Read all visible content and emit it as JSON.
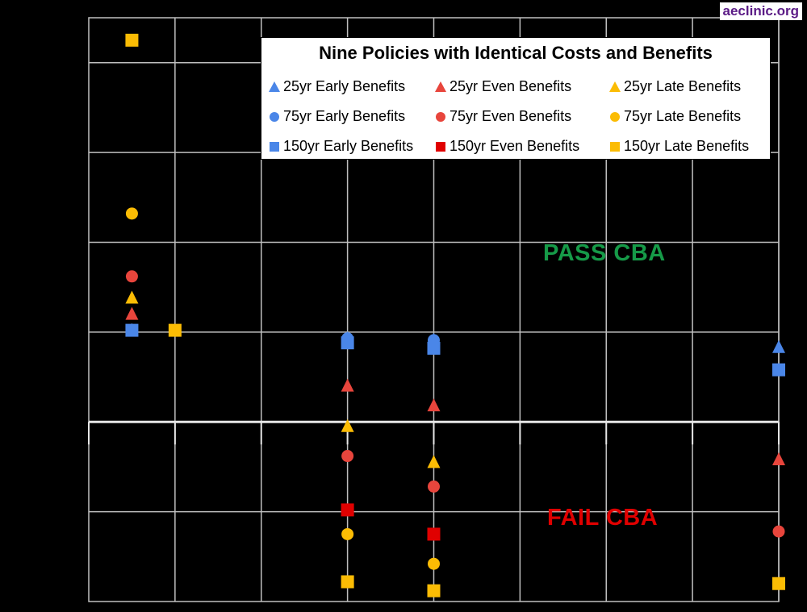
{
  "brand": "aeclinic.org",
  "colors": {
    "early": "#4a86e8",
    "even": "#e8453c",
    "late": "#fbbc04",
    "pass": "#169a48",
    "fail": "#e00000"
  },
  "chart_data": {
    "type": "scatter",
    "title": "Nine Policies with Identical Costs and Benefits",
    "xlabel": "",
    "ylabel": "",
    "grid": true,
    "legend_position": "top-right",
    "annotations": [
      {
        "text": "PASS CBA",
        "color": "#169a48"
      },
      {
        "text": "FAIL CBA",
        "color": "#e00000"
      }
    ],
    "series": [
      {
        "name": "25yr Early Benefits",
        "marker": "triangle",
        "color": "#4a86e8",
        "points": [
          [
            0.5,
            1.02
          ],
          [
            3,
            0.93
          ],
          [
            4,
            0.91
          ],
          [
            8,
            0.83
          ]
        ]
      },
      {
        "name": "75yr Early Benefits",
        "marker": "circle",
        "color": "#4a86e8",
        "points": [
          [
            0.5,
            1.02
          ],
          [
            3,
            0.93
          ],
          [
            4,
            0.91
          ]
        ]
      },
      {
        "name": "150yr Early Benefits",
        "marker": "square",
        "color": "#4a86e8",
        "points": [
          [
            0.5,
            1.02
          ],
          [
            3,
            0.88
          ],
          [
            4,
            0.82
          ],
          [
            8,
            0.58
          ]
        ]
      },
      {
        "name": "25yr Even Benefits",
        "marker": "triangle",
        "color": "#e8453c",
        "points": [
          [
            0.5,
            1.2
          ],
          [
            3,
            0.4
          ],
          [
            4,
            0.18
          ],
          [
            8,
            -0.42
          ]
        ]
      },
      {
        "name": "75yr Even Benefits",
        "marker": "circle",
        "color": "#e8453c",
        "points": [
          [
            0.5,
            1.62
          ],
          [
            3,
            -0.38
          ],
          [
            4,
            -0.72
          ],
          [
            8,
            -1.22
          ]
        ]
      },
      {
        "name": "150yr Even Benefits",
        "marker": "square",
        "color": "#e00000",
        "points": [
          [
            3,
            -0.98
          ],
          [
            4,
            -1.25
          ]
        ]
      },
      {
        "name": "25yr Late Benefits",
        "marker": "triangle",
        "color": "#fbbc04",
        "points": [
          [
            0.5,
            1.38
          ],
          [
            3,
            -0.05
          ],
          [
            4,
            -0.45
          ]
        ]
      },
      {
        "name": "75yr Late Benefits",
        "marker": "circle",
        "color": "#fbbc04",
        "points": [
          [
            0.5,
            2.32
          ],
          [
            3,
            -1.25
          ],
          [
            4,
            -1.58
          ]
        ]
      },
      {
        "name": "150yr Late Benefits",
        "marker": "square",
        "color": "#fbbc04",
        "points": [
          [
            0.5,
            4.25
          ],
          [
            1,
            1.02
          ],
          [
            3,
            -1.78
          ],
          [
            4,
            -1.88
          ],
          [
            8,
            -1.8
          ]
        ]
      }
    ]
  }
}
